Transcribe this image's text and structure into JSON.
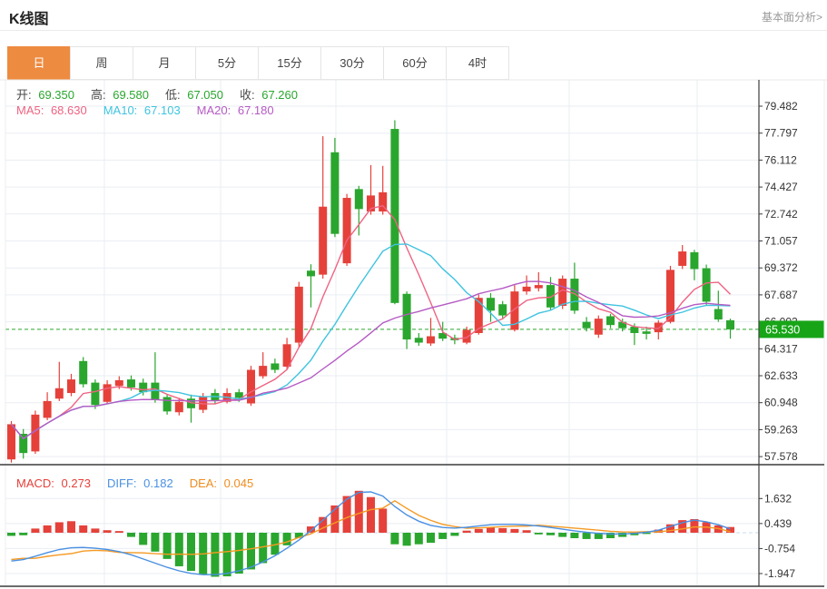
{
  "header": {
    "title": "K线图",
    "link": "基本面分析>"
  },
  "tabs": {
    "active_index": 0,
    "items": [
      {
        "label": "日",
        "name": "tab-day"
      },
      {
        "label": "周",
        "name": "tab-week"
      },
      {
        "label": "月",
        "name": "tab-month"
      },
      {
        "label": "5分",
        "name": "tab-5min"
      },
      {
        "label": "15分",
        "name": "tab-15min"
      },
      {
        "label": "30分",
        "name": "tab-30min"
      },
      {
        "label": "60分",
        "name": "tab-60min"
      },
      {
        "label": "4时",
        "name": "tab-4hour"
      }
    ]
  },
  "readout": {
    "ohlc": [
      {
        "label": "开:",
        "value": "69.350"
      },
      {
        "label": "高:",
        "value": "69.580"
      },
      {
        "label": "低:",
        "value": "67.050"
      },
      {
        "label": "收:",
        "value": "67.260"
      }
    ],
    "ma": [
      {
        "label": "MA5:",
        "value": "68.630",
        "color": "#ef6382"
      },
      {
        "label": "MA10:",
        "value": "67.103",
        "color": "#3fc3e0"
      },
      {
        "label": "MA20:",
        "value": "67.180",
        "color": "#b55ac4"
      }
    ],
    "macd": [
      {
        "label": "MACD:",
        "value": "0.273",
        "color": "#e5413a"
      },
      {
        "label": "DIFF:",
        "value": "0.182",
        "color": "#4a90e2"
      },
      {
        "label": "DEA:",
        "value": "0.045",
        "color": "#f08c1f"
      }
    ]
  },
  "colors": {
    "up": "#e5413a",
    "down": "#2aa62e",
    "ma5": "#ef6382",
    "ma10": "#3fc3e0",
    "ma20": "#b55ac4",
    "diff_line": "#4a90e2",
    "dea_line": "#f59a23",
    "tab_accent": "#ed8b40",
    "badge": "#17a517",
    "price_line": "#2aa62e",
    "grid": "#e9eef3",
    "axis": "#3c3c3c",
    "tick_text": "#333333"
  },
  "chart_data": {
    "type": "candlestick",
    "title": "K线图",
    "panes": [
      "price",
      "macd"
    ],
    "ohlc_value_color": "green",
    "price_ticks": [
      "79.482",
      "77.797",
      "76.112",
      "74.427",
      "72.742",
      "71.057",
      "69.372",
      "67.687",
      "66.002",
      "64.317",
      "62.633",
      "60.948",
      "59.263",
      "57.578"
    ],
    "last_price": "65.530",
    "ma_periods": [
      5,
      10,
      20
    ],
    "candles": [
      [
        57.4,
        59.8,
        57.2,
        59.6
      ],
      [
        59.0,
        59.3,
        57.45,
        57.8
      ],
      [
        57.9,
        60.45,
        57.75,
        60.2
      ],
      [
        60.0,
        61.6,
        59.85,
        61.05
      ],
      [
        61.2,
        63.5,
        61.05,
        61.85
      ],
      [
        61.55,
        62.75,
        61.35,
        62.4
      ],
      [
        63.55,
        63.8,
        61.9,
        62.1
      ],
      [
        62.2,
        62.4,
        60.55,
        60.8
      ],
      [
        61.0,
        62.35,
        60.85,
        62.1
      ],
      [
        62.0,
        62.6,
        61.8,
        62.35
      ],
      [
        62.4,
        62.65,
        61.7,
        61.9
      ],
      [
        62.2,
        62.45,
        61.4,
        61.6
      ],
      [
        62.2,
        64.1,
        60.95,
        61.1
      ],
      [
        61.3,
        61.5,
        60.2,
        60.4
      ],
      [
        60.35,
        61.25,
        60.15,
        61.0
      ],
      [
        61.2,
        61.45,
        59.7,
        60.6
      ],
      [
        60.5,
        61.55,
        60.3,
        61.3
      ],
      [
        61.55,
        61.8,
        60.85,
        61.05
      ],
      [
        61.0,
        61.85,
        60.9,
        61.55
      ],
      [
        61.6,
        61.8,
        61.0,
        61.25
      ],
      [
        60.9,
        63.25,
        60.75,
        63.0
      ],
      [
        62.6,
        64.1,
        62.45,
        63.25
      ],
      [
        63.4,
        63.7,
        62.8,
        63.0
      ],
      [
        63.2,
        65.0,
        63.0,
        64.6
      ],
      [
        64.7,
        68.5,
        64.4,
        68.2
      ],
      [
        69.2,
        69.6,
        66.9,
        68.85
      ],
      [
        68.95,
        77.6,
        68.7,
        73.2
      ],
      [
        76.6,
        77.5,
        71.3,
        71.5
      ],
      [
        69.66,
        74.0,
        69.5,
        73.75
      ],
      [
        74.3,
        74.5,
        71.4,
        73.05
      ],
      [
        72.9,
        75.8,
        72.7,
        73.9
      ],
      [
        72.9,
        75.75,
        72.7,
        74.1
      ],
      [
        78.06,
        78.6,
        67.1,
        67.18
      ],
      [
        67.75,
        67.9,
        64.3,
        64.9
      ],
      [
        65.0,
        65.3,
        64.5,
        64.7
      ],
      [
        64.65,
        66.25,
        64.5,
        65.1
      ],
      [
        65.3,
        66.0,
        64.8,
        64.95
      ],
      [
        65.0,
        65.2,
        64.6,
        64.85
      ],
      [
        64.7,
        65.7,
        64.6,
        65.5
      ],
      [
        65.3,
        67.7,
        65.2,
        67.5
      ],
      [
        67.5,
        67.8,
        66.0,
        66.7
      ],
      [
        67.1,
        67.3,
        66.2,
        66.4
      ],
      [
        65.5,
        68.3,
        65.4,
        67.9
      ],
      [
        67.9,
        68.9,
        67.7,
        68.2
      ],
      [
        68.1,
        69.1,
        67.9,
        68.3
      ],
      [
        68.3,
        68.8,
        66.7,
        66.9
      ],
      [
        67.0,
        68.9,
        66.8,
        68.7
      ],
      [
        68.7,
        69.7,
        66.5,
        66.7
      ],
      [
        66.0,
        66.3,
        65.4,
        65.6
      ],
      [
        65.2,
        66.4,
        65.0,
        66.2
      ],
      [
        66.35,
        66.5,
        65.6,
        65.8
      ],
      [
        66.0,
        66.2,
        65.4,
        65.6
      ],
      [
        65.7,
        65.9,
        64.55,
        65.3
      ],
      [
        65.4,
        65.7,
        64.9,
        65.25
      ],
      [
        65.35,
        66.1,
        64.9,
        65.95
      ],
      [
        66.0,
        69.5,
        65.9,
        69.25
      ],
      [
        69.5,
        70.8,
        69.3,
        70.4
      ],
      [
        70.35,
        70.5,
        68.6,
        69.3
      ],
      [
        69.35,
        69.58,
        67.05,
        67.26
      ],
      [
        66.8,
        67.95,
        66.0,
        66.15
      ],
      [
        66.1,
        66.2,
        64.95,
        65.53
      ]
    ],
    "macd": {
      "ticks": [
        "1.632",
        "0.439",
        "-0.754",
        "-1.947"
      ],
      "hist": [
        -0.15,
        -0.12,
        0.2,
        0.35,
        0.5,
        0.55,
        0.35,
        0.2,
        0.12,
        0.08,
        -0.2,
        -0.58,
        -0.9,
        -1.25,
        -1.6,
        -1.82,
        -1.98,
        -2.1,
        -2.08,
        -1.95,
        -1.75,
        -1.45,
        -1.05,
        -0.6,
        -0.25,
        0.3,
        0.75,
        1.3,
        1.75,
        2.0,
        1.7,
        1.15,
        -0.55,
        -0.62,
        -0.55,
        -0.48,
        -0.3,
        -0.15,
        0.1,
        0.18,
        0.25,
        0.22,
        0.18,
        0.12,
        -0.08,
        -0.12,
        -0.2,
        -0.26,
        -0.3,
        -0.3,
        -0.26,
        -0.2,
        -0.12,
        -0.06,
        0.15,
        0.4,
        0.6,
        0.65,
        0.5,
        0.35,
        0.273
      ],
      "diff": [
        -1.35,
        -1.28,
        -1.12,
        -0.95,
        -0.8,
        -0.72,
        -0.7,
        -0.74,
        -0.8,
        -0.9,
        -1.05,
        -1.25,
        -1.45,
        -1.65,
        -1.82,
        -1.94,
        -2.0,
        -2.0,
        -1.94,
        -1.82,
        -1.64,
        -1.4,
        -1.1,
        -0.74,
        -0.35,
        0.1,
        0.6,
        1.12,
        1.6,
        1.92,
        1.95,
        1.75,
        1.25,
        0.85,
        0.55,
        0.35,
        0.25,
        0.22,
        0.26,
        0.32,
        0.38,
        0.4,
        0.4,
        0.37,
        0.32,
        0.25,
        0.17,
        0.09,
        0.02,
        -0.03,
        -0.06,
        -0.06,
        -0.03,
        0.02,
        0.12,
        0.3,
        0.48,
        0.6,
        0.52,
        0.38,
        0.182
      ],
      "dea_rule": "dea = diff - hist/2"
    }
  }
}
